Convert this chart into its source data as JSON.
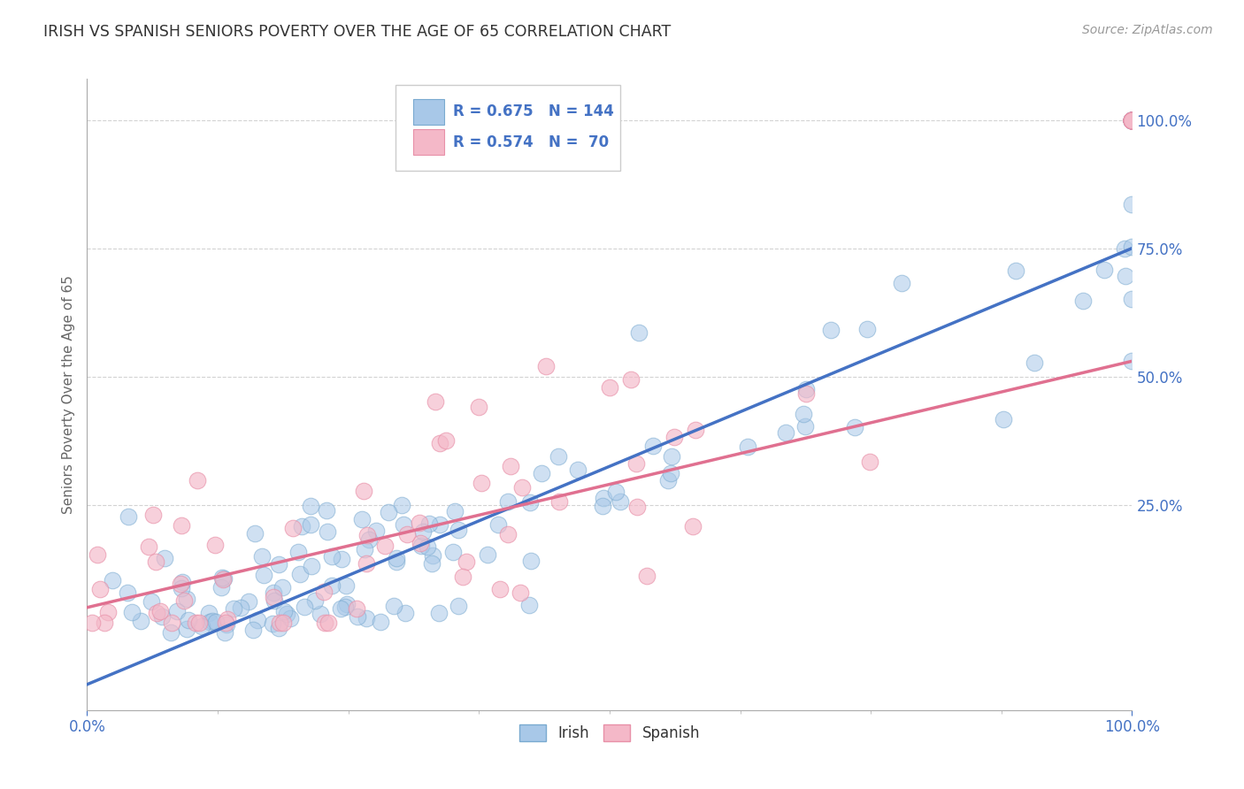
{
  "title": "IRISH VS SPANISH SENIORS POVERTY OVER THE AGE OF 65 CORRELATION CHART",
  "source": "Source: ZipAtlas.com",
  "ylabel": "Seniors Poverty Over the Age of 65",
  "irish_R": 0.675,
  "irish_N": 144,
  "spanish_R": 0.574,
  "spanish_N": 70,
  "irish_color": "#A8C8E8",
  "irish_edge_color": "#7AAAD0",
  "spanish_color": "#F4B8C8",
  "spanish_edge_color": "#E890A8",
  "irish_line_color": "#4472C4",
  "spanish_line_color": "#E07090",
  "background_color": "#FFFFFF",
  "grid_color": "#C8C8C8",
  "title_color": "#333333",
  "legend_text_color": "#4472C4",
  "axis_color": "#4472C4",
  "label_color": "#666666",
  "irish_trend_intercept": -0.1,
  "irish_trend_slope": 0.85,
  "spanish_trend_intercept": 0.05,
  "spanish_trend_slope": 0.48
}
